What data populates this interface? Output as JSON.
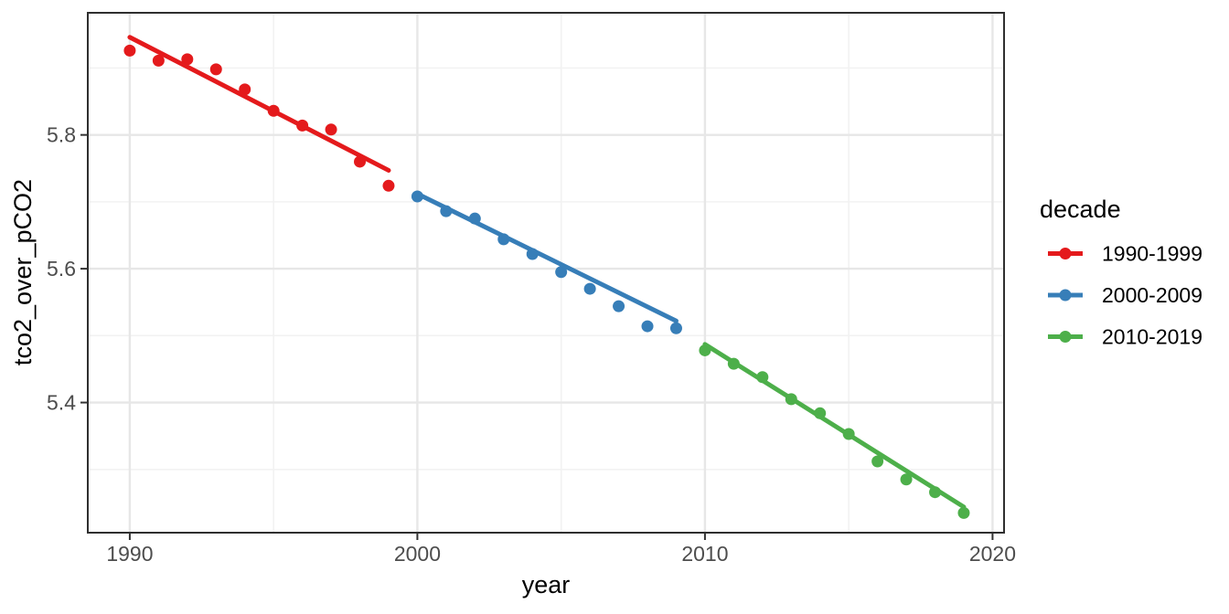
{
  "chart_data": {
    "type": "scatter",
    "title": "",
    "xlabel": "year",
    "ylabel": "tco2_over_pCO2",
    "x_ticks": [
      1990,
      2000,
      2010,
      2020
    ],
    "x_tick_labels": [
      "1990",
      "2000",
      "2010",
      "2020"
    ],
    "y_ticks": [
      5.4,
      5.6,
      5.8
    ],
    "y_tick_labels": [
      "5.4",
      "5.6",
      "5.8"
    ],
    "x_minor_ticks": [
      1995,
      2005,
      2015
    ],
    "y_minor_ticks": [
      5.3,
      5.5,
      5.7,
      5.9
    ],
    "xlim": [
      1988.54,
      2020.4
    ],
    "ylim": [
      5.2055,
      5.9825
    ],
    "grid": true,
    "legend": {
      "title": "decade",
      "position": "right"
    },
    "series": [
      {
        "name": "1990-1999",
        "color": "#E41A1C",
        "x": [
          1990,
          1991,
          1992,
          1993,
          1994,
          1995,
          1996,
          1997,
          1998,
          1999
        ],
        "y": [
          5.926,
          5.911,
          5.913,
          5.898,
          5.868,
          5.836,
          5.814,
          5.808,
          5.76,
          5.724
        ],
        "trend": {
          "x1": 1990.0,
          "y1": 5.946,
          "x2": 1999.0,
          "y2": 5.747
        }
      },
      {
        "name": "2000-2009",
        "color": "#377EB8",
        "x": [
          2000,
          2001,
          2002,
          2003,
          2004,
          2005,
          2006,
          2007,
          2008,
          2009
        ],
        "y": [
          5.708,
          5.686,
          5.675,
          5.644,
          5.622,
          5.595,
          5.57,
          5.544,
          5.514,
          5.511
        ],
        "trend": {
          "x1": 2000.0,
          "y1": 5.712,
          "x2": 2009.0,
          "y2": 5.522
        }
      },
      {
        "name": "2010-2019",
        "color": "#4DAF4A",
        "x": [
          2010,
          2011,
          2012,
          2013,
          2014,
          2015,
          2016,
          2017,
          2018,
          2019
        ],
        "y": [
          5.478,
          5.458,
          5.438,
          5.405,
          5.384,
          5.353,
          5.312,
          5.285,
          5.266,
          5.235
        ],
        "trend": {
          "x1": 2010.0,
          "y1": 5.487,
          "x2": 2019.0,
          "y2": 5.244
        }
      }
    ]
  },
  "theme": {
    "background": "#FFFFFF",
    "panel_background": "#FFFFFF",
    "grid_major_color": "#E7E7E7",
    "grid_minor_color": "#F2F2F2",
    "panel_border_color": "#2F2F2F",
    "tick_color": "#333333",
    "tick_label_color": "#4D4D4D",
    "axis_title_color": "#000000",
    "point_radius": 6.5,
    "trend_width": 5
  }
}
